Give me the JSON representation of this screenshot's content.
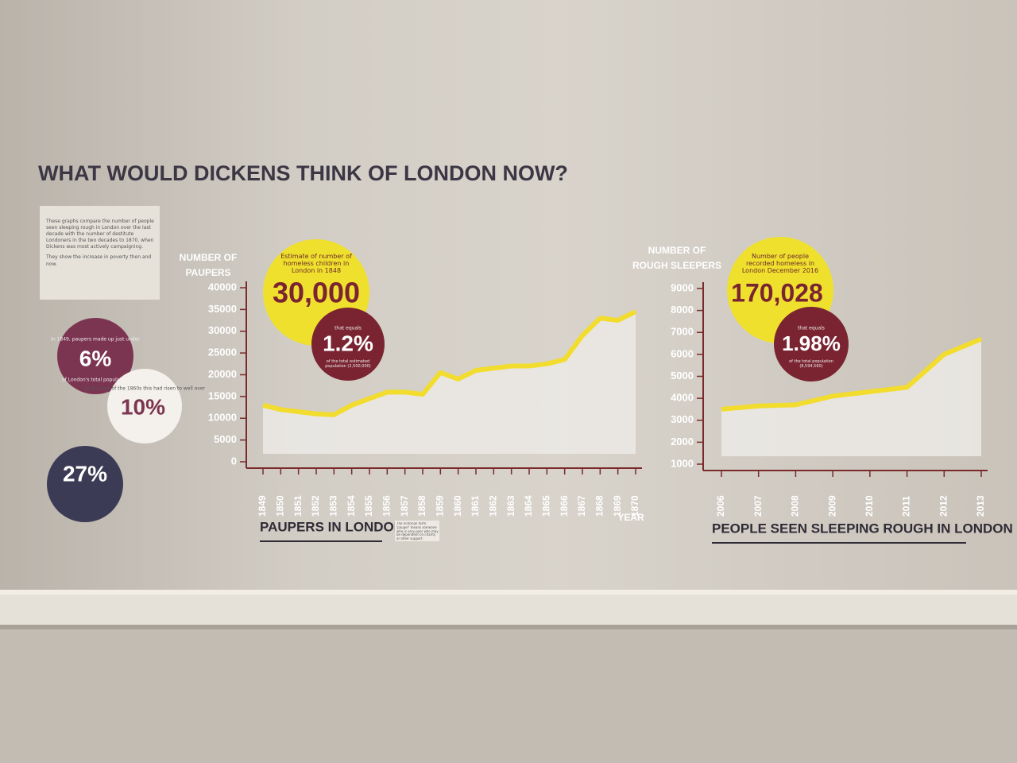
{
  "title": "WHAT WOULD DICKENS THINK OF LONDON NOW?",
  "intro": [
    "These graphs compare the number of people seen sleeping rough in London over the last decade with the number of destitute Londoners in the two decades to 1870, when Dickens was most actively campaigning.",
    "They show the increase in poverty then and now."
  ],
  "facts": [
    {
      "before": "In 1849, paupers made up just under",
      "big": "6%",
      "after": "of London's total population"
    },
    {
      "before": "By the end of the 1860s this had risen to well over",
      "big": "10%"
    },
    {
      "big": "27%"
    }
  ],
  "callouts": [
    {
      "caption": "Estimate of number of homeless children in London in 1848",
      "big": "30,000",
      "equals": "that equals",
      "percent": "1.2%",
      "note": "of the total estimated population (2,500,000)"
    },
    {
      "caption": "Number of people recorded homeless in London December 2016",
      "big": "170,028",
      "equals": "that equals",
      "percent": "1.98%",
      "note": "of the total population (8,594,560)"
    }
  ],
  "pauper_note": "The Victorian term 'pauper' means someone who is very poor who may be dependent on charity or other support.",
  "chart_data": [
    {
      "type": "line",
      "title": "PAUPERS IN LONDON",
      "y_label": "NUMBER OF PAUPERS",
      "x_label": "YEAR",
      "categories": [
        "1849",
        "1850",
        "1851",
        "1852",
        "1853",
        "1854",
        "1855",
        "1856",
        "1857",
        "1858",
        "1859",
        "1860",
        "1861",
        "1862",
        "1863",
        "1864",
        "1865",
        "1866",
        "1867",
        "1868",
        "1869",
        "1870"
      ],
      "values": [
        13000,
        12000,
        11500,
        11000,
        10800,
        13000,
        14500,
        16000,
        16000,
        15500,
        20500,
        19000,
        21000,
        21500,
        22000,
        22000,
        22500,
        23500,
        29000,
        33000,
        32500,
        34500
      ],
      "color": "#f2dc2e",
      "ylim": [
        0,
        40000
      ],
      "yticks": [
        0,
        5000,
        10000,
        15000,
        20000,
        25000,
        30000,
        35000,
        40000
      ]
    },
    {
      "type": "line",
      "title": "PEOPLE SEEN SLEEPING ROUGH IN LONDON",
      "y_label": "NUMBER OF ROUGH SLEEPERS",
      "categories": [
        "2006",
        "2007",
        "2008",
        "2009",
        "2010",
        "2011",
        "2012",
        "2013"
      ],
      "values": [
        3500,
        3650,
        3700,
        4100,
        4300,
        4500,
        6000,
        6700
      ],
      "color": "#f2dc2e",
      "ylim": [
        1000,
        9000
      ],
      "yticks": [
        1000,
        2000,
        3000,
        4000,
        5000,
        6000,
        7000,
        8000,
        9000
      ]
    }
  ]
}
